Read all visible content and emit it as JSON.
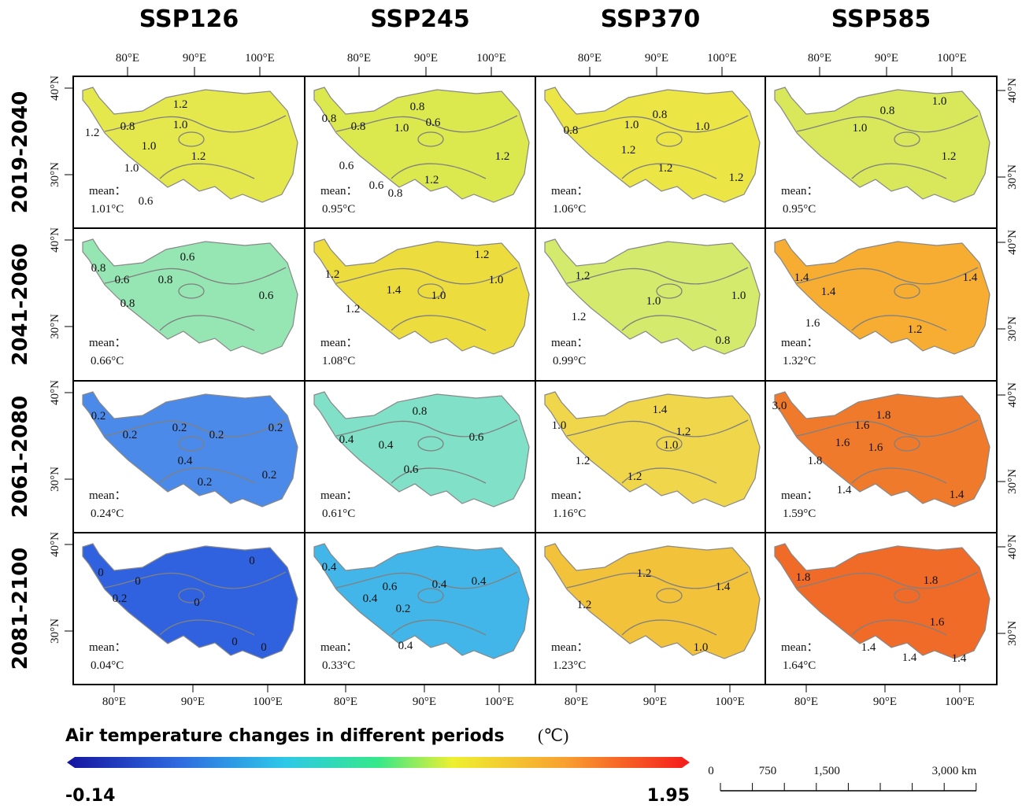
{
  "columns": [
    "SSP126",
    "SSP245",
    "SSP370",
    "SSP585"
  ],
  "rows": [
    {
      "period": "2019-2040",
      "cells": [
        {
          "contours": [
            "1.2",
            "0.8",
            "1.0",
            "1.2",
            "1.0",
            "1.0",
            "1.2",
            "0.6"
          ],
          "mean_label": "mean：",
          "mean": "1.01°C"
        },
        {
          "contours": [
            "0.8",
            "0.8",
            "0.6",
            "0.8",
            "1.0",
            "1.2",
            "0.6",
            "1.2",
            "0.6",
            "0.8"
          ],
          "mean_label": "mean：",
          "mean": "0.95°C"
        },
        {
          "contours": [
            "0.8",
            "1.0",
            "1.0",
            "0.8",
            "1.2",
            "1.2",
            "1.2"
          ],
          "mean_label": "mean：",
          "mean": "1.06°C"
        },
        {
          "contours": [
            "1.0",
            "0.8",
            "1.0",
            "1.2"
          ],
          "mean_label": "mean：",
          "mean": "0.95°C"
        }
      ]
    },
    {
      "period": "2041-2060",
      "cells": [
        {
          "contours": [
            "0.6",
            "0.8",
            "0.6",
            "0.8",
            "0.6",
            "0.8"
          ],
          "mean_label": "mean：",
          "mean": "0.66°C"
        },
        {
          "contours": [
            "1.2",
            "1.0",
            "1.2",
            "1.4",
            "1.0",
            "1.2"
          ],
          "mean_label": "mean：",
          "mean": "1.08°C"
        },
        {
          "contours": [
            "1.2",
            "1.0",
            "1.0",
            "1.2",
            "0.8"
          ],
          "mean_label": "mean：",
          "mean": "0.99°C"
        },
        {
          "contours": [
            "1.4",
            "1.4",
            "1.4",
            "1.6",
            "1.2"
          ],
          "mean_label": "mean：",
          "mean": "1.32°C"
        }
      ]
    },
    {
      "period": "2061-2080",
      "cells": [
        {
          "contours": [
            "0.2",
            "0.2",
            "0.2",
            "0.2",
            "0.2",
            "0.4",
            "0.2",
            "0.2"
          ],
          "mean_label": "mean：",
          "mean": "0.24°C"
        },
        {
          "contours": [
            "0.8",
            "0.4",
            "0.4",
            "0.6",
            "0.6"
          ],
          "mean_label": "mean：",
          "mean": "0.61°C"
        },
        {
          "contours": [
            "1.4",
            "1.0",
            "1.2",
            "1.0",
            "1.2",
            "1.2"
          ],
          "mean_label": "mean：",
          "mean": "1.16°C"
        },
        {
          "contours": [
            "3.0",
            "1.8",
            "1.6",
            "1.6",
            "1.6",
            "1.8",
            "1.4",
            "1.4"
          ],
          "mean_label": "mean：",
          "mean": "1.59°C"
        }
      ]
    },
    {
      "period": "2081-2100",
      "cells": [
        {
          "contours": [
            "0",
            "0",
            "0",
            "0.2",
            "0",
            "0",
            "0"
          ],
          "mean_label": "mean：",
          "mean": "0.04°C"
        },
        {
          "contours": [
            "0.4",
            "0.4",
            "0.6",
            "0.4",
            "0.4",
            "0.2",
            "0.4"
          ],
          "mean_label": "mean：",
          "mean": "0.33°C"
        },
        {
          "contours": [
            "1.2",
            "1.4",
            "1.2",
            "1.0"
          ],
          "mean_label": "mean：",
          "mean": "1.23°C"
        },
        {
          "contours": [
            "1.8",
            "1.8",
            "1.6",
            "1.4",
            "1.4",
            "1.4"
          ],
          "mean_label": "mean：",
          "mean": "1.64°C"
        }
      ]
    }
  ],
  "axes": {
    "lon_top": [
      "80°E",
      "90°E",
      "100°E"
    ],
    "lon_bottom": [
      "80°E",
      "90°E",
      "100°E"
    ],
    "lat": [
      "40°N",
      "30°N"
    ]
  },
  "legend": {
    "title": "Air temperature changes in different periods",
    "unit": "(℃)",
    "min": "-0.14",
    "max": "1.95"
  },
  "scale_bar": [
    "0",
    "750",
    "1,500",
    "3,000 km"
  ]
}
